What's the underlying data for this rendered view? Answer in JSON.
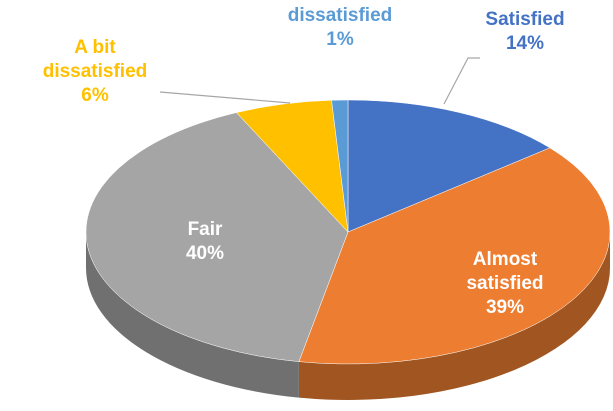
{
  "chart_data": {
    "type": "pie",
    "categories": [
      "Satisfied",
      "Almost satisfied",
      "Fair",
      "A bit dissatisfied",
      "dissatisfied"
    ],
    "values": [
      14,
      39,
      40,
      6,
      1
    ],
    "value_labels": [
      "14%",
      "39%",
      "40%",
      "6%",
      "1%"
    ],
    "colors": [
      "#4472c4",
      "#ed7d31",
      "#a5a5a5",
      "#ffc000",
      "#5b9bd5"
    ]
  }
}
